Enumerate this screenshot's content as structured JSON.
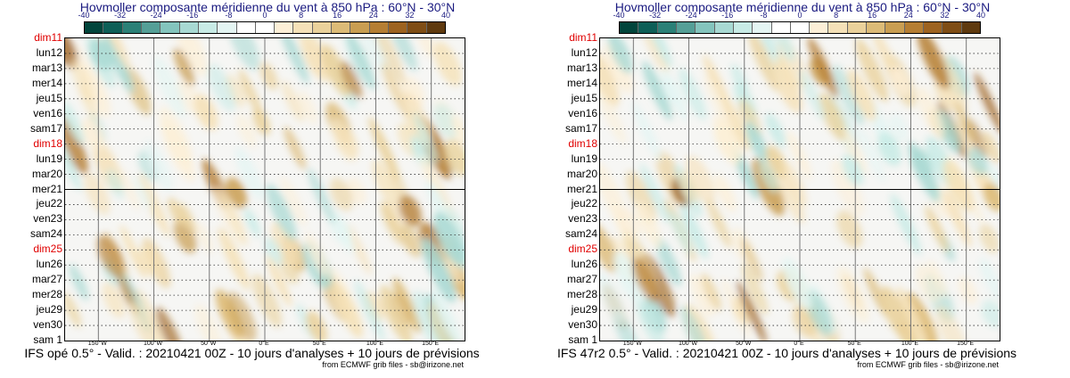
{
  "chart_data": [
    {
      "type": "heatmap",
      "title": "Hovmoller composante méridienne du vent à 850 hPa : 60°N - 30°N",
      "colorbar_ticks": [
        "-40",
        "-32",
        "-24",
        "-16",
        "-8",
        "0",
        "8",
        "16",
        "24",
        "32",
        "40"
      ],
      "colorbar_colors": [
        "#01453c",
        "#0e5f57",
        "#2b8077",
        "#559f97",
        "#84c4bd",
        "#a8d9d3",
        "#c8ebe6",
        "#e4f5f3",
        "#ffffff",
        "#ffffff",
        "#fcefd7",
        "#f5e1b8",
        "#ead19b",
        "#dcbb77",
        "#c99e52",
        "#b57e33",
        "#9d6320",
        "#7f4d15",
        "#5f3a0f"
      ],
      "y_labels": [
        "dim11",
        "lun12",
        "mar13",
        "mer14",
        "jeu15",
        "ven16",
        "sam17",
        "dim18",
        "lun19",
        "mar20",
        "mer21",
        "jeu22",
        "ven23",
        "sam24",
        "dim25",
        "lun26",
        "mar27",
        "mer28",
        "jeu29",
        "ven30",
        "sam 1"
      ],
      "y_highlight": [
        0,
        7,
        14
      ],
      "x_ticks": [
        "150°W",
        "100°W",
        "50°W",
        "0°E",
        "50°E",
        "100°E",
        "150°E"
      ],
      "x_range_deg": [
        -180,
        180
      ],
      "analysis_boundary_label": "mer21",
      "footer": "IFS opé 0.5° - Valid. : 20210421 00Z - 10 jours d'analyses + 10 jours de prévisions",
      "credit": "from ECMWF grib files - sb@irizone.net"
    },
    {
      "type": "heatmap",
      "title": "Hovmoller composante méridienne du vent à 850 hPa : 60°N - 30°N",
      "colorbar_ticks": [
        "-40",
        "-32",
        "-24",
        "-16",
        "-8",
        "0",
        "8",
        "16",
        "24",
        "32",
        "40"
      ],
      "colorbar_colors": [
        "#01453c",
        "#0e5f57",
        "#2b8077",
        "#559f97",
        "#84c4bd",
        "#a8d9d3",
        "#c8ebe6",
        "#e4f5f3",
        "#ffffff",
        "#ffffff",
        "#fcefd7",
        "#f5e1b8",
        "#ead19b",
        "#dcbb77",
        "#c99e52",
        "#b57e33",
        "#9d6320",
        "#7f4d15",
        "#5f3a0f"
      ],
      "y_labels": [
        "dim11",
        "lun12",
        "mar13",
        "mer14",
        "jeu15",
        "ven16",
        "sam17",
        "dim18",
        "lun19",
        "mar20",
        "mer21",
        "jeu22",
        "ven23",
        "sam24",
        "dim25",
        "lun26",
        "mar27",
        "mer28",
        "jeu29",
        "ven30",
        "sam 1"
      ],
      "y_highlight": [
        0,
        7,
        14
      ],
      "x_ticks": [
        "150°W",
        "100°W",
        "50°W",
        "0°E",
        "50°E",
        "100°E",
        "150°E"
      ],
      "x_range_deg": [
        -180,
        180
      ],
      "analysis_boundary_label": "mer21",
      "footer": "IFS 47r2 0.5° - Valid. : 20210421 00Z - 10 jours d'analyses + 10 jours de prévisions",
      "credit": "from ECMWF grib files - sb@irizone.net"
    }
  ]
}
